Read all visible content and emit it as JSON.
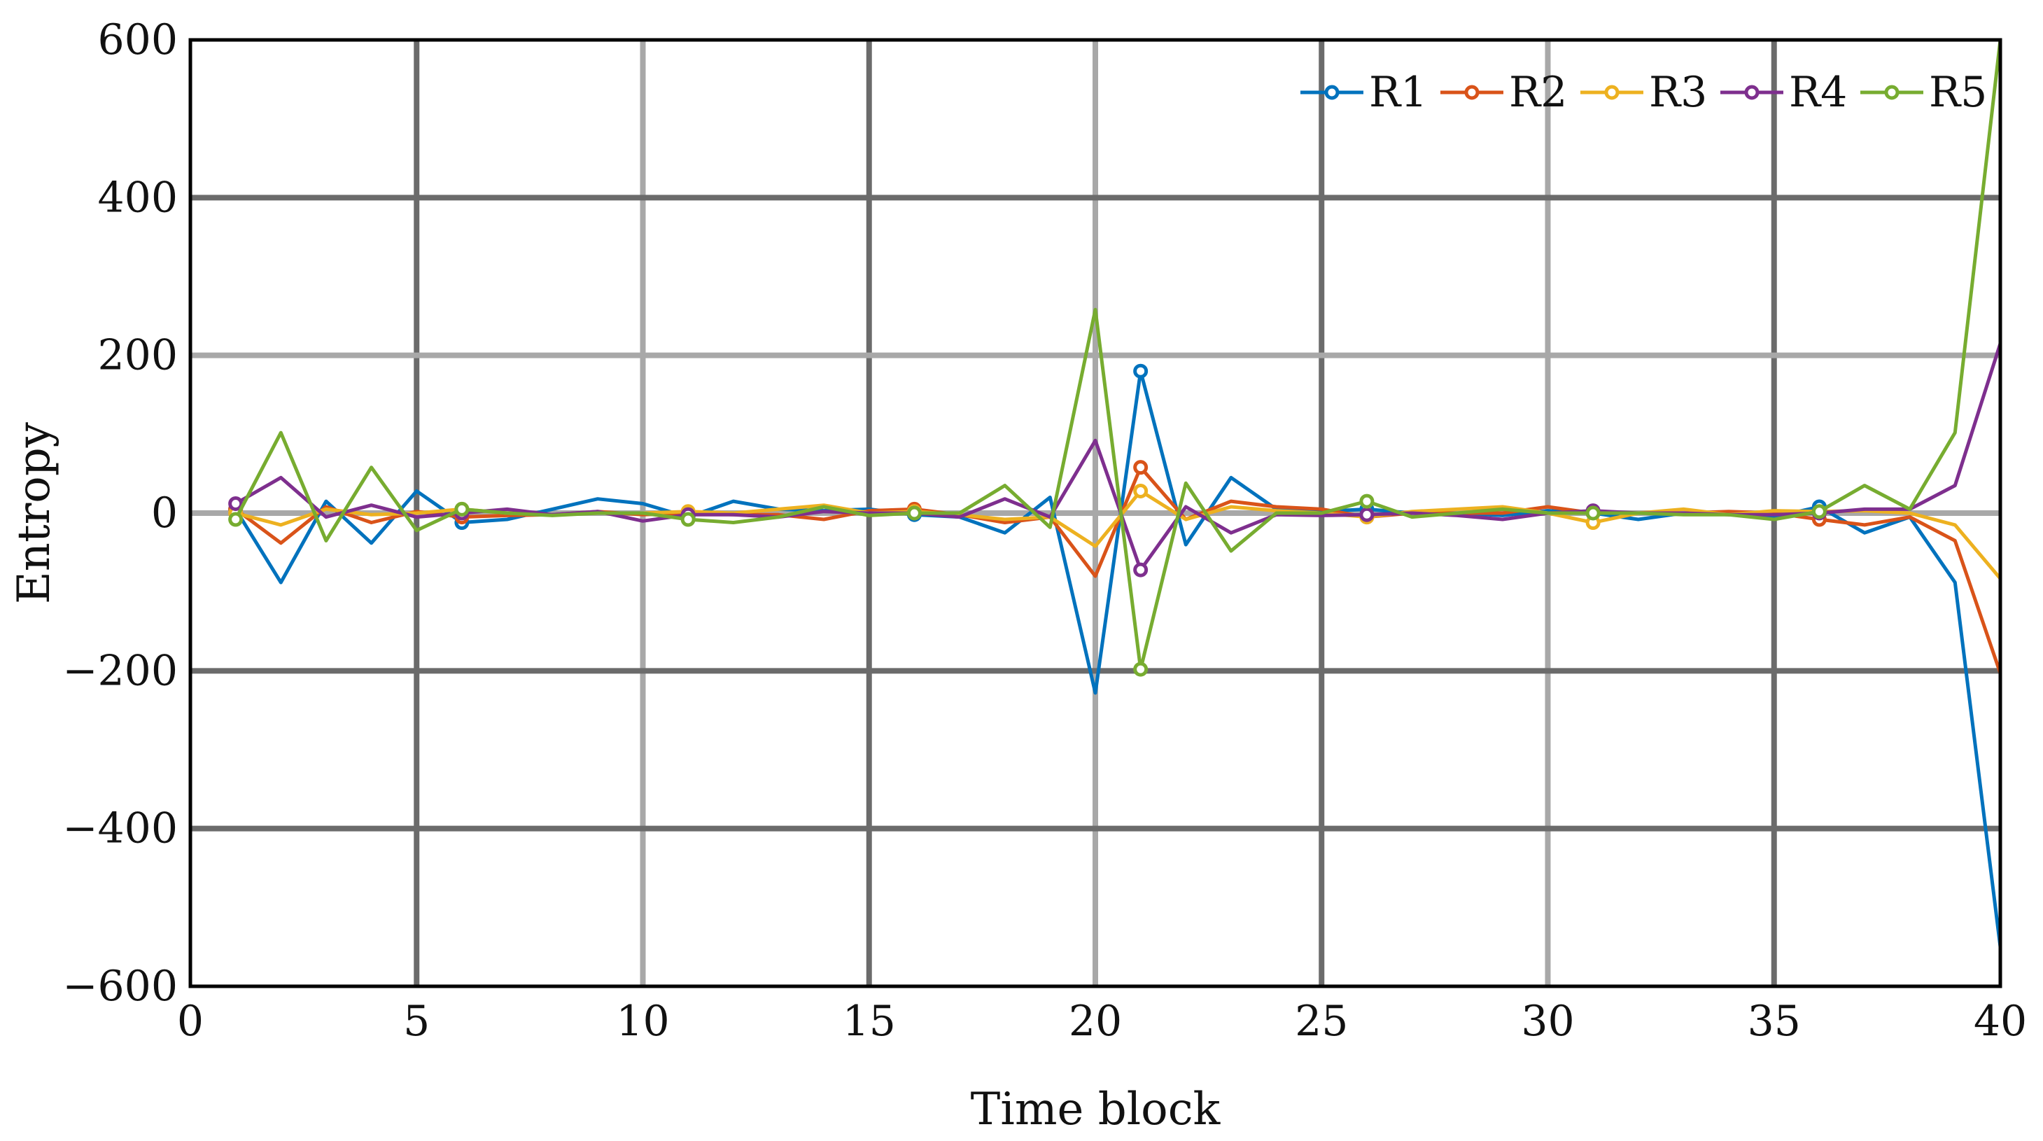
{
  "chart_data": {
    "type": "line",
    "title": "",
    "xlabel": "Time block",
    "ylabel": "Entropy",
    "xlim": [
      0,
      40
    ],
    "ylim": [
      -600,
      600
    ],
    "x_ticks": [
      0,
      5,
      10,
      15,
      20,
      25,
      30,
      35,
      40
    ],
    "y_ticks": [
      -600,
      -400,
      -200,
      0,
      200,
      400,
      600
    ],
    "x_tick_labels": [
      "0",
      "5",
      "10",
      "15",
      "20",
      "25",
      "30",
      "35",
      "40"
    ],
    "y_tick_labels": [
      "−600",
      "−400",
      "−200",
      "0",
      "200",
      "400",
      "600"
    ],
    "grid": true,
    "legend_position": "top-right",
    "x": [
      1,
      2,
      3,
      4,
      5,
      6,
      7,
      8,
      9,
      10,
      11,
      12,
      13,
      14,
      15,
      16,
      17,
      18,
      19,
      20,
      21,
      22,
      23,
      24,
      25,
      26,
      27,
      28,
      29,
      30,
      31,
      32,
      33,
      34,
      35,
      36,
      37,
      38,
      39,
      40
    ],
    "series": [
      {
        "name": "R1",
        "color": "#0072BD",
        "marker_indices": [
          0,
          5,
          10,
          15,
          20,
          25,
          30,
          35
        ],
        "values": [
          5,
          -88,
          15,
          -38,
          28,
          -12,
          -8,
          5,
          18,
          12,
          -5,
          15,
          5,
          3,
          5,
          -2,
          -5,
          -25,
          20,
          -228,
          180,
          -40,
          45,
          5,
          2,
          5,
          0,
          0,
          -3,
          3,
          0,
          -8,
          0,
          0,
          -5,
          8,
          -25,
          -5,
          -88,
          -550
        ]
      },
      {
        "name": "R2",
        "color": "#D95319",
        "marker_indices": [
          0,
          5,
          10,
          15,
          20,
          25,
          30,
          35
        ],
        "values": [
          5,
          -38,
          8,
          -12,
          2,
          -5,
          -3,
          -2,
          2,
          -2,
          0,
          -2,
          -2,
          -8,
          3,
          5,
          -2,
          -12,
          -5,
          -80,
          58,
          -8,
          15,
          8,
          5,
          -5,
          0,
          0,
          0,
          8,
          0,
          0,
          0,
          2,
          0,
          -8,
          -15,
          -5,
          -35,
          -203
        ]
      },
      {
        "name": "R3",
        "color": "#EDB120",
        "marker_indices": [
          0,
          5,
          10,
          15,
          20,
          25,
          30,
          35
        ],
        "values": [
          0,
          -15,
          5,
          -2,
          0,
          5,
          0,
          -2,
          0,
          0,
          2,
          0,
          5,
          10,
          0,
          2,
          -2,
          -8,
          -5,
          -42,
          28,
          -8,
          8,
          3,
          0,
          -5,
          2,
          5,
          8,
          0,
          -12,
          0,
          5,
          -2,
          3,
          2,
          3,
          0,
          -15,
          -83
        ]
      },
      {
        "name": "R4",
        "color": "#7E2F8E",
        "marker_indices": [
          0,
          5,
          10,
          15,
          20,
          25,
          30,
          35
        ],
        "values": [
          12,
          45,
          -5,
          10,
          -5,
          0,
          5,
          -2,
          2,
          -10,
          -2,
          -2,
          -5,
          2,
          0,
          0,
          -5,
          18,
          -5,
          92,
          -72,
          8,
          -25,
          -2,
          -3,
          -2,
          0,
          -3,
          -8,
          0,
          3,
          0,
          0,
          -2,
          -2,
          0,
          5,
          5,
          35,
          215
        ]
      },
      {
        "name": "R5",
        "color": "#77AC30",
        "marker_indices": [
          0,
          5,
          10,
          15,
          20,
          25,
          30,
          35
        ],
        "values": [
          -8,
          102,
          -35,
          58,
          -22,
          5,
          0,
          -3,
          0,
          0,
          -8,
          -12,
          -5,
          8,
          -3,
          0,
          0,
          35,
          -18,
          258,
          -198,
          38,
          -48,
          0,
          0,
          15,
          -5,
          0,
          5,
          0,
          0,
          0,
          -2,
          -2,
          -8,
          2,
          35,
          5,
          102,
          600
        ]
      }
    ]
  }
}
